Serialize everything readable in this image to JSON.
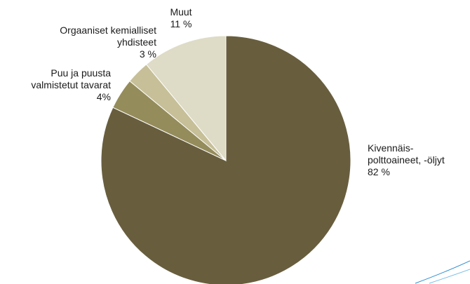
{
  "chart_data": {
    "type": "pie",
    "start_angle": "12 o'clock",
    "direction": "clockwise",
    "slices": [
      {
        "label_lines": [
          "Kivennäis-",
          "polttoaineet, -öljyt",
          "82 %"
        ],
        "value": 82,
        "color": "#685e3e"
      },
      {
        "label_lines": [
          "Puu ja puusta",
          "valmistetut tavarat",
          "4%"
        ],
        "value": 4,
        "color": "#958c5c"
      },
      {
        "label_lines": [
          "Orgaaniset kemialliset",
          "yhdisteet",
          "3 %"
        ],
        "value": 3,
        "color": "#c6bf98"
      },
      {
        "label_lines": [
          "Muut",
          "11 %"
        ],
        "value": 11,
        "color": "#dedbc6"
      }
    ]
  }
}
